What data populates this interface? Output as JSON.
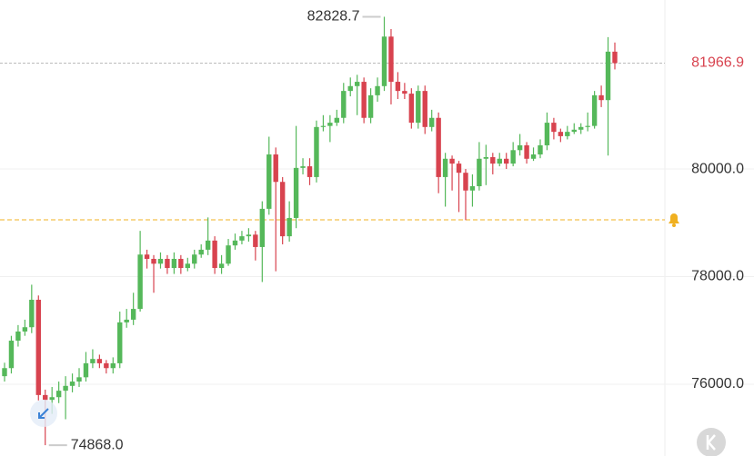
{
  "chart_data": {
    "type": "candlestick",
    "up_color": "#55b85a",
    "down_color": "#d8434f",
    "ylim": [
      74667,
      83140
    ],
    "yticks": [
      {
        "value": 76000,
        "label": "76000.0"
      },
      {
        "value": 78000,
        "label": "78000.0"
      },
      {
        "value": 80000,
        "label": "80000.0"
      }
    ],
    "grid": true,
    "high_label": {
      "value": 82828.7,
      "label": "82828.7"
    },
    "low_label": {
      "value": 74868,
      "label": "74868.0"
    },
    "alert_price": 79055,
    "open": [
      76150,
      76300,
      76810,
      76980,
      77060,
      77570,
      75800,
      75710,
      75760,
      75880,
      75970,
      76050,
      76130,
      76390,
      76470,
      76390,
      76300,
      76390,
      77150,
      77200,
      77400,
      78410,
      78330,
      78240,
      78330,
      78160,
      78330,
      78160,
      78240,
      78410,
      78500,
      78670,
      78160,
      78240,
      78580,
      78670,
      78750,
      78780,
      78550,
      79260,
      80270,
      79760,
      78750,
      79090,
      80020,
      80050,
      79850,
      80780,
      80800,
      80860,
      80950,
      81450,
      81540,
      81620,
      80950,
      81370,
      81540,
      82460,
      81620,
      81450,
      81400,
      80860,
      81450,
      80780,
      80950,
      79850,
      80190,
      80100,
      79930,
      79600,
      79680,
      80190,
      80220,
      80100,
      80190,
      80100,
      80350,
      80440,
      80190,
      80270,
      80440,
      80860,
      80690,
      80610,
      80690,
      80730,
      80780,
      80800,
      81370,
      81280,
      82180
    ],
    "high": [
      76400,
      76900,
      77100,
      77200,
      77850,
      77650,
      75900,
      75950,
      76050,
      76150,
      76200,
      76300,
      76600,
      76650,
      76550,
      76450,
      76500,
      77350,
      77400,
      77700,
      78850,
      78500,
      78400,
      78450,
      78400,
      78450,
      78400,
      78350,
      78500,
      78600,
      79100,
      78750,
      78400,
      78700,
      78800,
      78850,
      78900,
      78850,
      79400,
      80600,
      80400,
      79850,
      79400,
      80800,
      80200,
      80200,
      80900,
      81000,
      81000,
      81100,
      81600,
      81700,
      81750,
      81700,
      81500,
      81700,
      82828.7,
      82600,
      81800,
      81600,
      81500,
      81550,
      81550,
      81100,
      81050,
      80300,
      80250,
      80150,
      80000,
      79900,
      80500,
      80450,
      80300,
      80300,
      80300,
      80500,
      80650,
      80500,
      80400,
      80550,
      81050,
      80950,
      80750,
      80800,
      80850,
      80850,
      81050,
      81450,
      81550,
      82450,
      82350
    ],
    "low": [
      76050,
      76200,
      76700,
      76900,
      76950,
      75700,
      74868,
      75450,
      75650,
      75350,
      75850,
      75950,
      76050,
      76300,
      76300,
      76200,
      76200,
      76300,
      77050,
      77100,
      77350,
      78150,
      77700,
      78150,
      78050,
      78050,
      78050,
      78100,
      78150,
      78350,
      78400,
      78050,
      78050,
      78200,
      78500,
      78600,
      78650,
      78300,
      77900,
      79150,
      78100,
      78600,
      78650,
      78900,
      79900,
      79700,
      79750,
      80700,
      80500,
      80800,
      80850,
      81350,
      81000,
      80850,
      80850,
      81250,
      81450,
      81200,
      81300,
      81300,
      80750,
      80750,
      80650,
      80700,
      79550,
      79300,
      79600,
      79200,
      79050,
      79300,
      79600,
      79700,
      79900,
      80050,
      80000,
      80050,
      80250,
      80100,
      80150,
      80200,
      80350,
      80550,
      80500,
      80550,
      80650,
      80650,
      80700,
      80750,
      81150,
      80250,
      81850
    ],
    "close": [
      76300,
      76810,
      76980,
      77060,
      77570,
      75800,
      75710,
      75760,
      75880,
      75970,
      76050,
      76130,
      76390,
      76470,
      76390,
      76300,
      76390,
      77150,
      77200,
      77400,
      78410,
      78330,
      78240,
      78330,
      78160,
      78330,
      78160,
      78240,
      78410,
      78500,
      78670,
      78160,
      78240,
      78580,
      78670,
      78750,
      78780,
      78550,
      79260,
      80270,
      79760,
      78750,
      79090,
      80020,
      80050,
      79850,
      80780,
      80800,
      80860,
      80950,
      81450,
      81540,
      81620,
      80950,
      81370,
      81540,
      82460,
      81620,
      81450,
      81400,
      80860,
      81450,
      80780,
      80950,
      79850,
      80190,
      80100,
      79930,
      79600,
      79680,
      80190,
      80220,
      80100,
      80190,
      80100,
      80350,
      80440,
      80190,
      80270,
      80440,
      80860,
      80690,
      80610,
      80690,
      80730,
      80780,
      80800,
      81370,
      81280,
      82180,
      81966.9
    ]
  }
}
